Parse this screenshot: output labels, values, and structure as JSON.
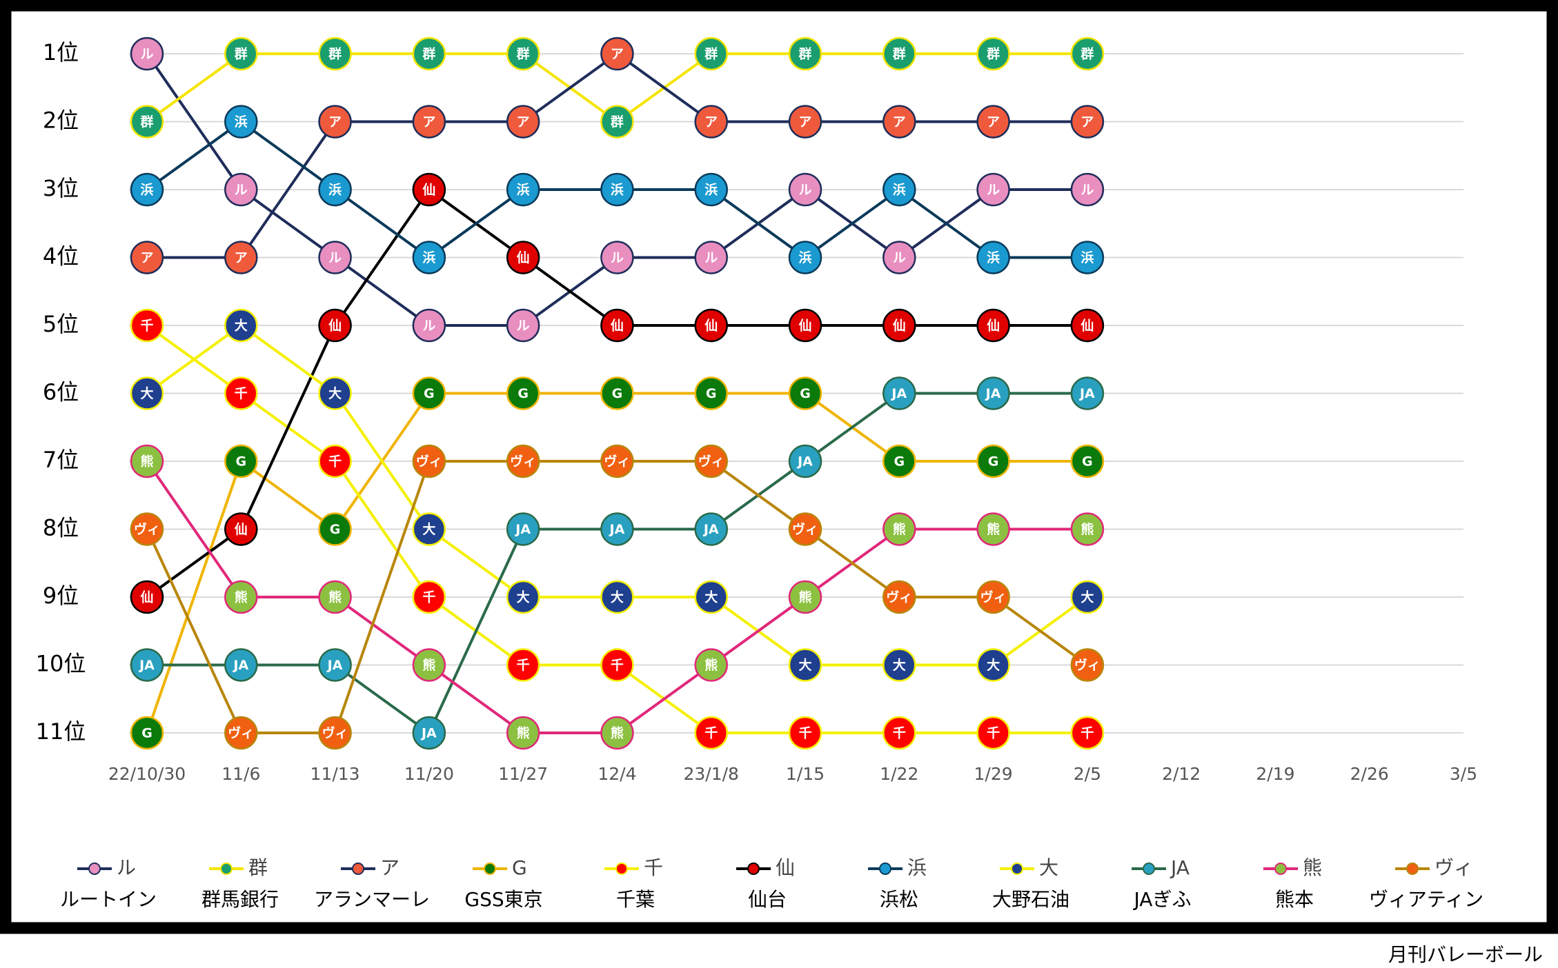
{
  "chart_data": {
    "type": "bump",
    "categories": [
      "22/10/30",
      "11/6",
      "11/13",
      "11/20",
      "11/27",
      "12/4",
      "23/1/8",
      "1/15",
      "1/22",
      "1/29",
      "2/5",
      "2/12",
      "2/19",
      "2/26",
      "3/5"
    ],
    "ylim": [
      1,
      11
    ],
    "y_reversed": true,
    "yticks": [
      {
        "value": 1,
        "label": "1位"
      },
      {
        "value": 2,
        "label": "2位"
      },
      {
        "value": 3,
        "label": "3位"
      },
      {
        "value": 4,
        "label": "4位"
      },
      {
        "value": 5,
        "label": "5位"
      },
      {
        "value": 6,
        "label": "6位"
      },
      {
        "value": 7,
        "label": "7位"
      },
      {
        "value": 8,
        "label": "8位"
      },
      {
        "value": 9,
        "label": "9位"
      },
      {
        "value": 10,
        "label": "10位"
      },
      {
        "value": 11,
        "label": "11位"
      }
    ],
    "grid": true,
    "series": [
      {
        "name": "ルートイン",
        "short": "ル",
        "color": "#1f2d5a",
        "marker_color": "#e88fc0",
        "values": [
          1,
          3,
          4,
          5,
          5,
          4,
          4,
          3,
          4,
          3,
          3,
          null,
          null,
          null,
          null
        ]
      },
      {
        "name": "群馬銀行",
        "short": "群",
        "color": "#f5e400",
        "marker_color": "#1a9e6e",
        "values": [
          2,
          1,
          1,
          1,
          1,
          2,
          1,
          1,
          1,
          1,
          1,
          null,
          null,
          null,
          null
        ]
      },
      {
        "name": "アランマーレ",
        "short": "ア",
        "color": "#1f2d5a",
        "marker_color": "#f05a3c",
        "values": [
          4,
          4,
          2,
          2,
          2,
          1,
          2,
          2,
          2,
          2,
          2,
          null,
          null,
          null,
          null
        ]
      },
      {
        "name": "GSS東京",
        "short": "G",
        "color": "#f0b400",
        "marker_color": "#0a7a0a",
        "values": [
          11,
          7,
          8,
          6,
          6,
          6,
          6,
          6,
          7,
          7,
          7,
          null,
          null,
          null,
          null
        ]
      },
      {
        "name": "千葉",
        "short": "千",
        "color": "#f5f000",
        "marker_color": "#ff0000",
        "values": [
          5,
          6,
          7,
          9,
          10,
          10,
          11,
          11,
          11,
          11,
          11,
          null,
          null,
          null,
          null
        ]
      },
      {
        "name": "仙台",
        "short": "仙",
        "color": "#000000",
        "marker_color": "#e00000",
        "values": [
          9,
          8,
          5,
          3,
          4,
          5,
          5,
          5,
          5,
          5,
          5,
          null,
          null,
          null,
          null
        ]
      },
      {
        "name": "浜松",
        "short": "浜",
        "color": "#0b3a5a",
        "marker_color": "#1a9ad0",
        "values": [
          3,
          2,
          3,
          4,
          3,
          3,
          3,
          4,
          3,
          4,
          4,
          null,
          null,
          null,
          null
        ]
      },
      {
        "name": "大野石油",
        "short": "大",
        "color": "#f5f000",
        "marker_color": "#1f3f8f",
        "values": [
          6,
          5,
          6,
          8,
          9,
          9,
          9,
          10,
          10,
          10,
          9,
          null,
          null,
          null,
          null
        ]
      },
      {
        "name": "JAぎふ",
        "short": "JA",
        "color": "#2a6a4a",
        "marker_color": "#2aa0c0",
        "values": [
          10,
          10,
          10,
          11,
          8,
          8,
          8,
          7,
          6,
          6,
          6,
          null,
          null,
          null,
          null
        ]
      },
      {
        "name": "熊本",
        "short": "熊",
        "color": "#e0287a",
        "marker_color": "#8cc040",
        "values": [
          7,
          9,
          9,
          10,
          11,
          11,
          10,
          9,
          8,
          8,
          8,
          null,
          null,
          null,
          null
        ]
      },
      {
        "name": "ヴィアティン",
        "short": "ヴィ",
        "color": "#b8860b",
        "marker_color": "#f06010",
        "values": [
          8,
          11,
          11,
          7,
          7,
          7,
          7,
          8,
          9,
          9,
          10,
          null,
          null,
          null,
          null
        ]
      }
    ],
    "source": "月刊バレーボール"
  }
}
